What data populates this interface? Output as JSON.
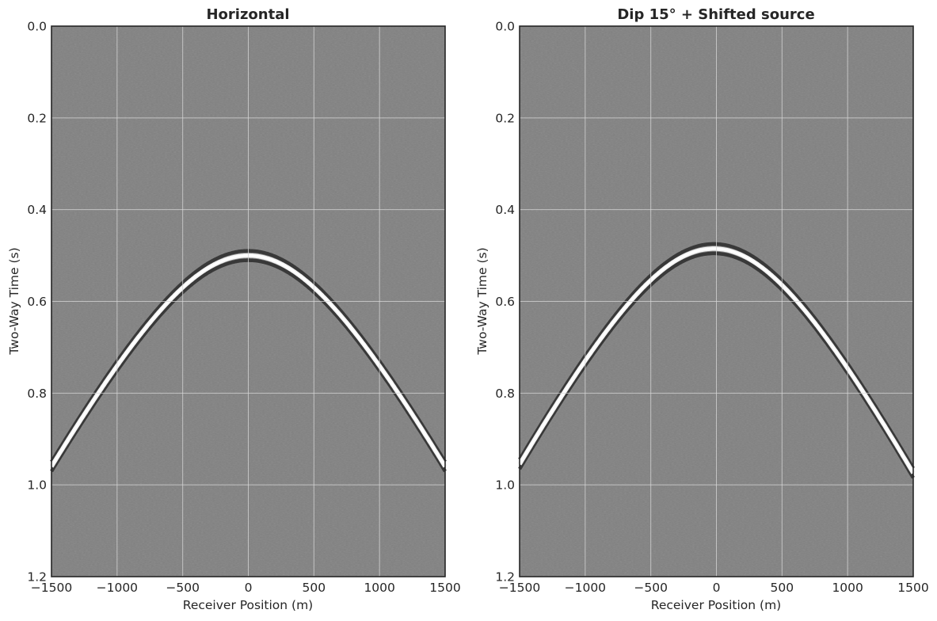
{
  "chart_data": [
    {
      "type": "heatmap",
      "title": "Horizontal",
      "xlabel": "Receiver Position (m)",
      "ylabel": "Two-Way Time (s)",
      "xlim": [
        -1500,
        1500
      ],
      "ylim": [
        1.2,
        0.0
      ],
      "y_inverted": true,
      "xticks": [
        -1500,
        -1000,
        -500,
        0,
        500,
        1000,
        1500
      ],
      "xtick_labels": [
        "−1500",
        "−1000",
        "−500",
        "0",
        "500",
        "1000",
        "1500"
      ],
      "yticks": [
        0.0,
        0.2,
        0.4,
        0.6,
        0.8,
        1.0,
        1.2
      ],
      "ytick_labels": [
        "0.0",
        "0.2",
        "0.4",
        "0.6",
        "0.8",
        "1.0",
        "1.2"
      ],
      "grid": true,
      "colormap": "gray",
      "background_color": "#808080",
      "reflection_event": {
        "apex_x": 0,
        "apex_t": 0.5,
        "points": [
          [
            -1500,
            0.96
          ],
          [
            -1000,
            0.77
          ],
          [
            -500,
            0.595
          ],
          [
            0,
            0.5
          ],
          [
            500,
            0.595
          ],
          [
            1000,
            0.77
          ],
          [
            1500,
            0.96
          ]
        ]
      }
    },
    {
      "type": "heatmap",
      "title": "Dip 15° + Shifted source",
      "xlabel": "Receiver Position (m)",
      "ylabel": "Two-Way Time (s)",
      "xlim": [
        -1500,
        1500
      ],
      "ylim": [
        1.2,
        0.0
      ],
      "y_inverted": true,
      "xticks": [
        -1500,
        -1000,
        -500,
        0,
        500,
        1000,
        1500
      ],
      "xtick_labels": [
        "−1500",
        "−1000",
        "−500",
        "0",
        "500",
        "1000",
        "1500"
      ],
      "yticks": [
        0.0,
        0.2,
        0.4,
        0.6,
        0.8,
        1.0,
        1.2
      ],
      "ytick_labels": [
        "0.0",
        "0.2",
        "0.4",
        "0.6",
        "0.8",
        "1.0",
        "1.2"
      ],
      "grid": true,
      "colormap": "gray",
      "background_color": "#808080",
      "reflection_event": {
        "apex_x": -20,
        "apex_t": 0.485,
        "points": [
          [
            -1500,
            0.955
          ],
          [
            -1000,
            0.76
          ],
          [
            -500,
            0.583
          ],
          [
            -20,
            0.485
          ],
          [
            500,
            0.59
          ],
          [
            1000,
            0.76
          ],
          [
            1500,
            0.955
          ]
        ]
      }
    }
  ]
}
